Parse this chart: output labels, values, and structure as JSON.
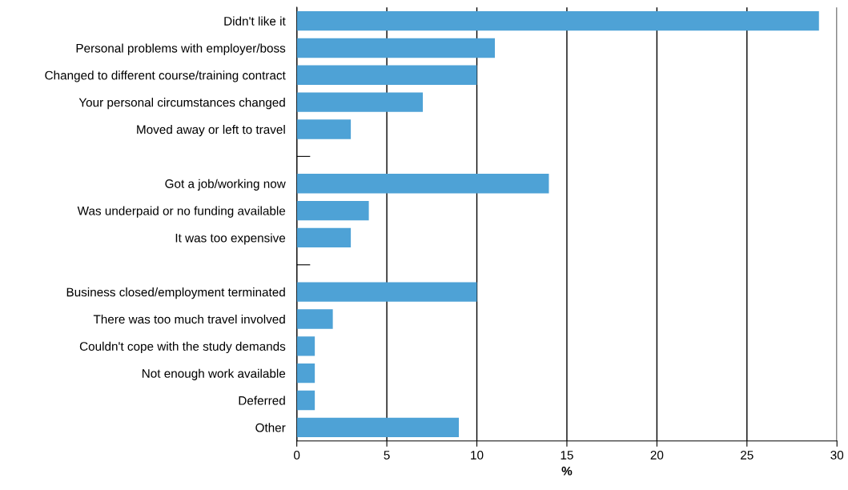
{
  "chart_data": {
    "type": "bar",
    "orientation": "horizontal",
    "xlabel": "%",
    "categories": [
      "Didn't like it",
      "Personal problems with employer/boss",
      "Changed to different course/training contract",
      "Your personal circumstances changed",
      "Moved away or left to travel",
      null,
      "Got a job/working now",
      "Was underpaid or no funding available",
      "It was too expensive",
      null,
      "Business closed/employment terminated",
      "There was too much travel involved",
      "Couldn't cope with the study demands",
      "Not enough work available",
      "Deferred",
      "Other"
    ],
    "values": [
      29,
      11,
      10,
      7,
      3,
      null,
      14,
      4,
      3,
      null,
      10,
      2,
      1,
      1,
      1,
      9
    ],
    "color": "#4ea2d6",
    "xlim": [
      0,
      30
    ],
    "xticks": [
      0,
      5,
      10,
      15,
      20,
      25,
      30
    ],
    "grid": "x",
    "legend": false
  }
}
